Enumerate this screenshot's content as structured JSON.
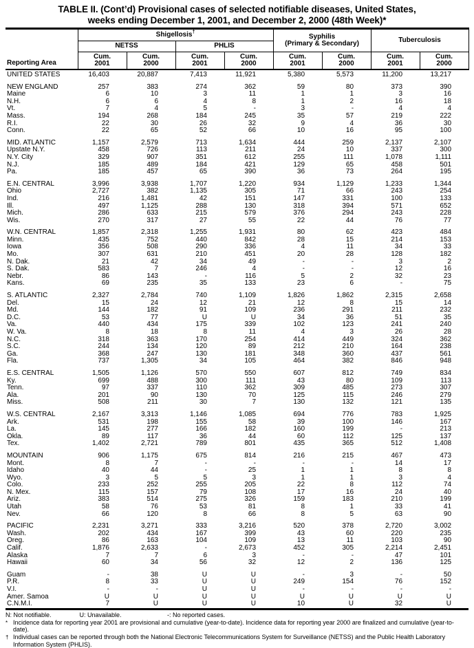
{
  "title": {
    "line1": "TABLE II. (Cont’d) Provisional cases of selected notifiable diseases, United States,",
    "line2": "weeks ending December 1, 2001, and December 2, 2000 (48th Week)*"
  },
  "header": {
    "reporting_area": "Reporting Area",
    "shigellosis": "Shigellosis",
    "shigellosis_sup": "†",
    "netss": "NETSS",
    "phlis": "PHLIS",
    "syphilis_line1": "Syphilis",
    "syphilis_line2": "(Primary & Secondary)",
    "tuberculosis": "Tuberculosis",
    "cum_cols": [
      {
        "label": "Cum.",
        "year": "2001"
      },
      {
        "label": "Cum.",
        "year": "2000"
      },
      {
        "label": "Cum.",
        "year": "2001"
      },
      {
        "label": "Cum.",
        "year": "2000"
      },
      {
        "label": "Cum.",
        "year": "2001"
      },
      {
        "label": "Cum.",
        "year": "2000"
      },
      {
        "label": "Cum.",
        "year": "2001"
      },
      {
        "label": "Cum.",
        "year": "2000"
      }
    ]
  },
  "table": {
    "groups": [
      {
        "rows": [
          {
            "area": "UNITED STATES",
            "values": [
              "16,403",
              "20,887",
              "7,413",
              "11,921",
              "5,380",
              "5,573",
              "11,200",
              "13,217"
            ]
          }
        ]
      },
      {
        "rows": [
          {
            "area": "NEW ENGLAND",
            "values": [
              "257",
              "383",
              "274",
              "362",
              "59",
              "80",
              "373",
              "390"
            ]
          },
          {
            "area": "Maine",
            "values": [
              "6",
              "10",
              "3",
              "11",
              "1",
              "1",
              "3",
              "16"
            ]
          },
          {
            "area": "N.H.",
            "values": [
              "6",
              "6",
              "4",
              "8",
              "1",
              "2",
              "16",
              "18"
            ]
          },
          {
            "area": "Vt.",
            "values": [
              "7",
              "4",
              "5",
              "-",
              "3",
              "-",
              "4",
              "4"
            ]
          },
          {
            "area": "Mass.",
            "values": [
              "194",
              "268",
              "184",
              "245",
              "35",
              "57",
              "219",
              "222"
            ]
          },
          {
            "area": "R.I.",
            "values": [
              "22",
              "30",
              "26",
              "32",
              "9",
              "4",
              "36",
              "30"
            ]
          },
          {
            "area": "Conn.",
            "values": [
              "22",
              "65",
              "52",
              "66",
              "10",
              "16",
              "95",
              "100"
            ]
          }
        ]
      },
      {
        "rows": [
          {
            "area": "MID. ATLANTIC",
            "values": [
              "1,157",
              "2,579",
              "713",
              "1,634",
              "444",
              "259",
              "2,137",
              "2,107"
            ]
          },
          {
            "area": "Upstate N.Y.",
            "values": [
              "458",
              "726",
              "113",
              "211",
              "24",
              "10",
              "337",
              "300"
            ]
          },
          {
            "area": "N.Y. City",
            "values": [
              "329",
              "907",
              "351",
              "612",
              "255",
              "111",
              "1,078",
              "1,111"
            ]
          },
          {
            "area": "N.J.",
            "values": [
              "185",
              "489",
              "184",
              "421",
              "129",
              "65",
              "458",
              "501"
            ]
          },
          {
            "area": "Pa.",
            "values": [
              "185",
              "457",
              "65",
              "390",
              "36",
              "73",
              "264",
              "195"
            ]
          }
        ]
      },
      {
        "rows": [
          {
            "area": "E.N. CENTRAL",
            "values": [
              "3,996",
              "3,938",
              "1,707",
              "1,220",
              "934",
              "1,129",
              "1,233",
              "1,344"
            ]
          },
          {
            "area": "Ohio",
            "values": [
              "2,727",
              "382",
              "1,135",
              "305",
              "71",
              "66",
              "243",
              "254"
            ]
          },
          {
            "area": "Ind.",
            "values": [
              "216",
              "1,481",
              "42",
              "151",
              "147",
              "331",
              "100",
              "133"
            ]
          },
          {
            "area": "Ill.",
            "values": [
              "497",
              "1,125",
              "288",
              "130",
              "318",
              "394",
              "571",
              "652"
            ]
          },
          {
            "area": "Mich.",
            "values": [
              "286",
              "633",
              "215",
              "579",
              "376",
              "294",
              "243",
              "228"
            ]
          },
          {
            "area": "Wis.",
            "values": [
              "270",
              "317",
              "27",
              "55",
              "22",
              "44",
              "76",
              "77"
            ]
          }
        ]
      },
      {
        "rows": [
          {
            "area": "W.N. CENTRAL",
            "values": [
              "1,857",
              "2,318",
              "1,255",
              "1,931",
              "80",
              "62",
              "423",
              "484"
            ]
          },
          {
            "area": "Minn.",
            "values": [
              "435",
              "752",
              "440",
              "842",
              "28",
              "15",
              "214",
              "153"
            ]
          },
          {
            "area": "Iowa",
            "values": [
              "356",
              "508",
              "290",
              "336",
              "4",
              "11",
              "34",
              "33"
            ]
          },
          {
            "area": "Mo.",
            "values": [
              "307",
              "631",
              "210",
              "451",
              "20",
              "28",
              "128",
              "182"
            ]
          },
          {
            "area": "N. Dak.",
            "values": [
              "21",
              "42",
              "34",
              "49",
              "-",
              "-",
              "3",
              "2"
            ]
          },
          {
            "area": "S. Dak.",
            "values": [
              "583",
              "7",
              "246",
              "4",
              "-",
              "-",
              "12",
              "16"
            ]
          },
          {
            "area": "Nebr.",
            "values": [
              "86",
              "143",
              "-",
              "116",
              "5",
              "2",
              "32",
              "23"
            ]
          },
          {
            "area": "Kans.",
            "values": [
              "69",
              "235",
              "35",
              "133",
              "23",
              "6",
              "-",
              "75"
            ]
          }
        ]
      },
      {
        "rows": [
          {
            "area": "S. ATLANTIC",
            "values": [
              "2,327",
              "2,784",
              "740",
              "1,109",
              "1,826",
              "1,862",
              "2,315",
              "2,658"
            ]
          },
          {
            "area": "Del.",
            "values": [
              "15",
              "24",
              "12",
              "21",
              "12",
              "8",
              "15",
              "14"
            ]
          },
          {
            "area": "Md.",
            "values": [
              "144",
              "182",
              "91",
              "109",
              "236",
              "291",
              "211",
              "232"
            ]
          },
          {
            "area": "D.C.",
            "values": [
              "53",
              "77",
              "U",
              "U",
              "34",
              "36",
              "51",
              "35"
            ]
          },
          {
            "area": "Va.",
            "values": [
              "440",
              "434",
              "175",
              "339",
              "102",
              "123",
              "241",
              "240"
            ]
          },
          {
            "area": "W. Va.",
            "values": [
              "8",
              "18",
              "8",
              "11",
              "4",
              "3",
              "26",
              "28"
            ]
          },
          {
            "area": "N.C.",
            "values": [
              "318",
              "363",
              "170",
              "254",
              "414",
              "449",
              "324",
              "362"
            ]
          },
          {
            "area": "S.C.",
            "values": [
              "244",
              "134",
              "120",
              "89",
              "212",
              "210",
              "164",
              "238"
            ]
          },
          {
            "area": "Ga.",
            "values": [
              "368",
              "247",
              "130",
              "181",
              "348",
              "360",
              "437",
              "561"
            ]
          },
          {
            "area": "Fla.",
            "values": [
              "737",
              "1,305",
              "34",
              "105",
              "464",
              "382",
              "846",
              "948"
            ]
          }
        ]
      },
      {
        "rows": [
          {
            "area": "E.S. CENTRAL",
            "values": [
              "1,505",
              "1,126",
              "570",
              "550",
              "607",
              "812",
              "749",
              "834"
            ]
          },
          {
            "area": "Ky.",
            "values": [
              "699",
              "488",
              "300",
              "111",
              "43",
              "80",
              "109",
              "113"
            ]
          },
          {
            "area": "Tenn.",
            "values": [
              "97",
              "337",
              "110",
              "362",
              "309",
              "485",
              "273",
              "307"
            ]
          },
          {
            "area": "Ala.",
            "values": [
              "201",
              "90",
              "130",
              "70",
              "125",
              "115",
              "246",
              "279"
            ]
          },
          {
            "area": "Miss.",
            "values": [
              "508",
              "211",
              "30",
              "7",
              "130",
              "132",
              "121",
              "135"
            ]
          }
        ]
      },
      {
        "rows": [
          {
            "area": "W.S. CENTRAL",
            "values": [
              "2,167",
              "3,313",
              "1,146",
              "1,085",
              "694",
              "776",
              "783",
              "1,925"
            ]
          },
          {
            "area": "Ark.",
            "values": [
              "531",
              "198",
              "155",
              "58",
              "39",
              "100",
              "146",
              "167"
            ]
          },
          {
            "area": "La.",
            "values": [
              "145",
              "277",
              "166",
              "182",
              "160",
              "199",
              "-",
              "213"
            ]
          },
          {
            "area": "Okla.",
            "values": [
              "89",
              "117",
              "36",
              "44",
              "60",
              "112",
              "125",
              "137"
            ]
          },
          {
            "area": "Tex.",
            "values": [
              "1,402",
              "2,721",
              "789",
              "801",
              "435",
              "365",
              "512",
              "1,408"
            ]
          }
        ]
      },
      {
        "rows": [
          {
            "area": "MOUNTAIN",
            "values": [
              "906",
              "1,175",
              "675",
              "814",
              "216",
              "215",
              "467",
              "473"
            ]
          },
          {
            "area": "Mont.",
            "values": [
              "8",
              "7",
              "-",
              "-",
              "-",
              "-",
              "14",
              "17"
            ]
          },
          {
            "area": "Idaho",
            "values": [
              "40",
              "44",
              "-",
              "25",
              "1",
              "1",
              "8",
              "8"
            ]
          },
          {
            "area": "Wyo.",
            "values": [
              "3",
              "5",
              "5",
              "3",
              "1",
              "1",
              "3",
              "4"
            ]
          },
          {
            "area": "Colo.",
            "values": [
              "233",
              "252",
              "255",
              "205",
              "22",
              "8",
              "112",
              "74"
            ]
          },
          {
            "area": "N. Mex.",
            "values": [
              "115",
              "157",
              "79",
              "108",
              "17",
              "16",
              "24",
              "40"
            ]
          },
          {
            "area": "Ariz.",
            "values": [
              "383",
              "514",
              "275",
              "326",
              "159",
              "183",
              "210",
              "199"
            ]
          },
          {
            "area": "Utah",
            "values": [
              "58",
              "76",
              "53",
              "81",
              "8",
              "1",
              "33",
              "41"
            ]
          },
          {
            "area": "Nev.",
            "values": [
              "66",
              "120",
              "8",
              "66",
              "8",
              "5",
              "63",
              "90"
            ]
          }
        ]
      },
      {
        "rows": [
          {
            "area": "PACIFIC",
            "values": [
              "2,231",
              "3,271",
              "333",
              "3,216",
              "520",
              "378",
              "2,720",
              "3,002"
            ]
          },
          {
            "area": "Wash.",
            "values": [
              "202",
              "434",
              "167",
              "399",
              "43",
              "60",
              "220",
              "235"
            ]
          },
          {
            "area": "Oreg.",
            "values": [
              "86",
              "163",
              "104",
              "109",
              "13",
              "11",
              "103",
              "90"
            ]
          },
          {
            "area": "Calif.",
            "values": [
              "1,876",
              "2,633",
              "-",
              "2,673",
              "452",
              "305",
              "2,214",
              "2,451"
            ]
          },
          {
            "area": "Alaska",
            "values": [
              "7",
              "7",
              "6",
              "3",
              "-",
              "-",
              "47",
              "101"
            ]
          },
          {
            "area": "Hawaii",
            "values": [
              "60",
              "34",
              "56",
              "32",
              "12",
              "2",
              "136",
              "125"
            ]
          }
        ]
      },
      {
        "rows": [
          {
            "area": "Guam",
            "values": [
              "-",
              "38",
              "U",
              "U",
              "-",
              "3",
              "-",
              "50"
            ]
          },
          {
            "area": "P.R.",
            "values": [
              "8",
              "33",
              "U",
              "U",
              "249",
              "154",
              "76",
              "152"
            ]
          },
          {
            "area": "V.I.",
            "values": [
              "-",
              "-",
              "U",
              "U",
              "-",
              "-",
              "-",
              "-"
            ]
          },
          {
            "area": "Amer. Samoa",
            "values": [
              "U",
              "U",
              "U",
              "U",
              "U",
              "U",
              "U",
              "U"
            ]
          },
          {
            "area": "C.N.M.I.",
            "values": [
              "7",
              "U",
              "U",
              "U",
              "10",
              "U",
              "32",
              "U"
            ]
          }
        ]
      }
    ]
  },
  "footnotes": {
    "legend_n": "N: Not notifiable.",
    "legend_u": "U: Unavailable.",
    "legend_dash": "-: No reported cases.",
    "star_symbol": "*",
    "star_text": "Incidence data for reporting year 2001 are provisional and cumulative (year-to-date). Incidence data for reporting year 2000 are finalized and cumulative (year-to-date).",
    "dagger_symbol": "†",
    "dagger_text": "Individual cases can be reported through both the National Electronic Telecommunications System for Surveillance (NETSS) and the Public Health Laboratory Information System (PHLIS)."
  }
}
